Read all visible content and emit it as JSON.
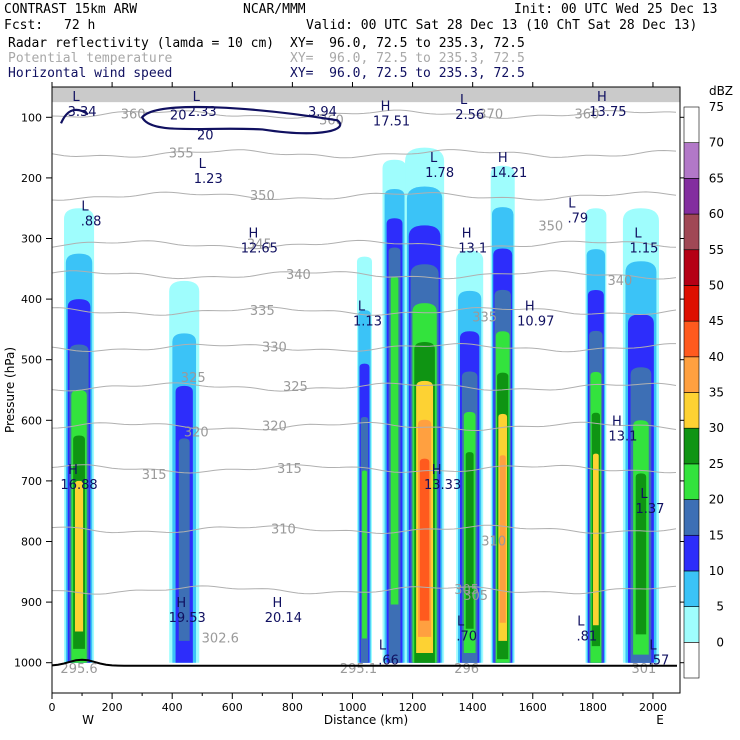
{
  "header": {
    "model": "CONTRAST 15km ARW",
    "org": "NCAR/MMM",
    "init": "Init: 00 UTC Wed 25 Dec 13",
    "fcst_label": "Fcst:",
    "fcst_value": "72 h",
    "valid": "Valid: 00 UTC Sat 28 Dec 13 (10 ChT Sat 28 Dec 13)",
    "fields": [
      {
        "name": "Radar reflectivity (lamda = 10 cm)",
        "xy": "XY=  96.0, 72.5 to 235.3, 72.5"
      },
      {
        "name": "Potential temperature",
        "xy": "XY=  96.0, 72.5 to 235.3, 72.5"
      },
      {
        "name": "Horizontal wind speed",
        "xy": "XY=  96.0, 72.5 to 235.3, 72.5"
      }
    ]
  },
  "colors": {
    "reflectivity_scale": [
      "#ffffff",
      "#9ffdfd",
      "#3bc3f7",
      "#2d2dfb",
      "#3d6fb5",
      "#33e33d",
      "#0f9413",
      "#fdd233",
      "#ffa040",
      "#ff5a1e",
      "#dd0f00",
      "#b50015",
      "#a04855",
      "#832e9f",
      "#b278c8"
    ],
    "wind_contour": "#101060",
    "theta_contour": "#b0b0b0",
    "terrain": "#000000"
  },
  "chart_data": {
    "type": "heatmap",
    "xlabel": "Distance (km)",
    "ylabel": "Pressure (hPa)",
    "xlim": [
      0,
      2090
    ],
    "ylim": [
      1050,
      50
    ],
    "x_ticks": [
      0,
      200,
      400,
      600,
      800,
      1000,
      1200,
      1400,
      1600,
      1800,
      2000
    ],
    "y_ticks": [
      100,
      200,
      300,
      400,
      500,
      600,
      700,
      800,
      900,
      1000
    ],
    "x_end_labels": {
      "left": "W",
      "right": "E"
    },
    "colorbar": {
      "unit": "dBZ",
      "levels": [
        0,
        5,
        10,
        15,
        20,
        25,
        30,
        35,
        40,
        45,
        50,
        55,
        60,
        65,
        70,
        75
      ]
    },
    "storms": [
      {
        "x": 90,
        "p_top": 250,
        "halfwidth": 50,
        "peak_dbz": 37,
        "peak_p": 750
      },
      {
        "x": 440,
        "p_top": 370,
        "halfwidth": 50,
        "peak_dbz": 24,
        "peak_p": 700
      },
      {
        "x": 1040,
        "p_top": 330,
        "halfwidth": 25,
        "peak_dbz": 25,
        "peak_p": 750
      },
      {
        "x": 1140,
        "p_top": 170,
        "halfwidth": 40,
        "peak_dbz": 28,
        "peak_p": 400
      },
      {
        "x": 1240,
        "p_top": 150,
        "halfwidth": 65,
        "peak_dbz": 47,
        "peak_p": 700
      },
      {
        "x": 1390,
        "p_top": 320,
        "halfwidth": 45,
        "peak_dbz": 30,
        "peak_p": 700
      },
      {
        "x": 1500,
        "p_top": 180,
        "halfwidth": 40,
        "peak_dbz": 40,
        "peak_p": 700
      },
      {
        "x": 1810,
        "p_top": 250,
        "halfwidth": 35,
        "peak_dbz": 35,
        "peak_p": 700
      },
      {
        "x": 1960,
        "p_top": 250,
        "halfwidth": 60,
        "peak_dbz": 32,
        "peak_p": 750
      }
    ],
    "theta_contours": [
      {
        "label": "355",
        "p": 160,
        "label_x": 430
      },
      {
        "label": "350",
        "p": 230,
        "label_x": 700
      },
      {
        "label": "345",
        "p": 310,
        "label_x": 690
      },
      {
        "label": "340",
        "p": 360,
        "label_x": 820
      },
      {
        "label": "335",
        "p": 420,
        "label_x": 700
      },
      {
        "label": "330",
        "p": 480,
        "label_x": 740
      },
      {
        "label": "325",
        "p": 545,
        "label_x": 810
      },
      {
        "label": "320",
        "p": 610,
        "label_x": 740
      },
      {
        "label": "315",
        "p": 680,
        "label_x": 790
      },
      {
        "label": "310",
        "p": 780,
        "label_x": 770
      },
      {
        "label": "305",
        "p": 880,
        "label_x": 1380
      },
      {
        "label": "360",
        "p": 95,
        "label_x": 1780
      }
    ],
    "theta_extra_labels": [
      {
        "label": "320",
        "x": 480,
        "p": 620
      },
      {
        "label": "315",
        "x": 340,
        "p": 690
      },
      {
        "label": "325",
        "x": 470,
        "p": 530
      },
      {
        "label": "350",
        "x": 1660,
        "p": 280
      },
      {
        "label": "340",
        "x": 1890,
        "p": 370
      },
      {
        "label": "335",
        "x": 1440,
        "p": 430
      },
      {
        "label": "310",
        "x": 1470,
        "p": 800
      },
      {
        "label": "305",
        "x": 1410,
        "p": 890
      },
      {
        "label": "370",
        "x": 1460,
        "p": 95
      },
      {
        "label": "360",
        "x": 270,
        "p": 95
      },
      {
        "label": "360",
        "x": 930,
        "p": 105
      },
      {
        "label": "295.1",
        "x": 1020,
        "p": 1010
      },
      {
        "label": "296",
        "x": 1380,
        "p": 1010
      },
      {
        "label": "301",
        "x": 1970,
        "p": 1010
      },
      {
        "label": "295.6",
        "x": 90,
        "p": 1010
      },
      {
        "label": "302.6",
        "x": 560,
        "p": 960
      }
    ],
    "annotations": [
      {
        "type": "H",
        "value": "17.51",
        "x": 1130,
        "p": 100
      },
      {
        "type": "L",
        "value": "2.56",
        "x": 1390,
        "p": 90
      },
      {
        "type": "H",
        "value": "13.75",
        "x": 1850,
        "p": 85
      },
      {
        "type": "L",
        "value": "3.34",
        "x": 100,
        "p": 85
      },
      {
        "type": "L",
        "value": "2.33",
        "x": 500,
        "p": 85
      },
      {
        "type": "",
        "value": "3.94",
        "x": 900,
        "p": 85
      },
      {
        "type": "L",
        "value": "1.23",
        "x": 520,
        "p": 195
      },
      {
        "type": "L",
        "value": "1.78",
        "x": 1290,
        "p": 185
      },
      {
        "type": "H",
        "value": "14.21",
        "x": 1520,
        "p": 185
      },
      {
        "type": "L",
        "value": ".88",
        "x": 130,
        "p": 265
      },
      {
        "type": "H",
        "value": "12.65",
        "x": 690,
        "p": 310
      },
      {
        "type": "H",
        "value": "13.1",
        "x": 1400,
        "p": 310
      },
      {
        "type": "L",
        "value": ".79",
        "x": 1750,
        "p": 260
      },
      {
        "type": "L",
        "value": "1.15",
        "x": 1970,
        "p": 310
      },
      {
        "type": "L",
        "value": "1.13",
        "x": 1050,
        "p": 430
      },
      {
        "type": "H",
        "value": "10.97",
        "x": 1610,
        "p": 430
      },
      {
        "type": "H",
        "value": "13.1",
        "x": 1900,
        "p": 620
      },
      {
        "type": "H",
        "value": "16.88",
        "x": 90,
        "p": 700
      },
      {
        "type": "H",
        "value": "13.33",
        "x": 1300,
        "p": 700
      },
      {
        "type": "L",
        "value": "1.37",
        "x": 1990,
        "p": 740
      },
      {
        "type": "H",
        "value": "19.53",
        "x": 450,
        "p": 920
      },
      {
        "type": "H",
        "value": "20.14",
        "x": 770,
        "p": 920
      },
      {
        "type": "L",
        "value": ".70",
        "x": 1380,
        "p": 950
      },
      {
        "type": "L",
        "value": ".81",
        "x": 1780,
        "p": 950
      },
      {
        "type": "L",
        "value": ".66",
        "x": 1120,
        "p": 990
      },
      {
        "type": "L",
        "value": ".57",
        "x": 2020,
        "p": 990
      }
    ],
    "wind_contour_label": "20"
  }
}
